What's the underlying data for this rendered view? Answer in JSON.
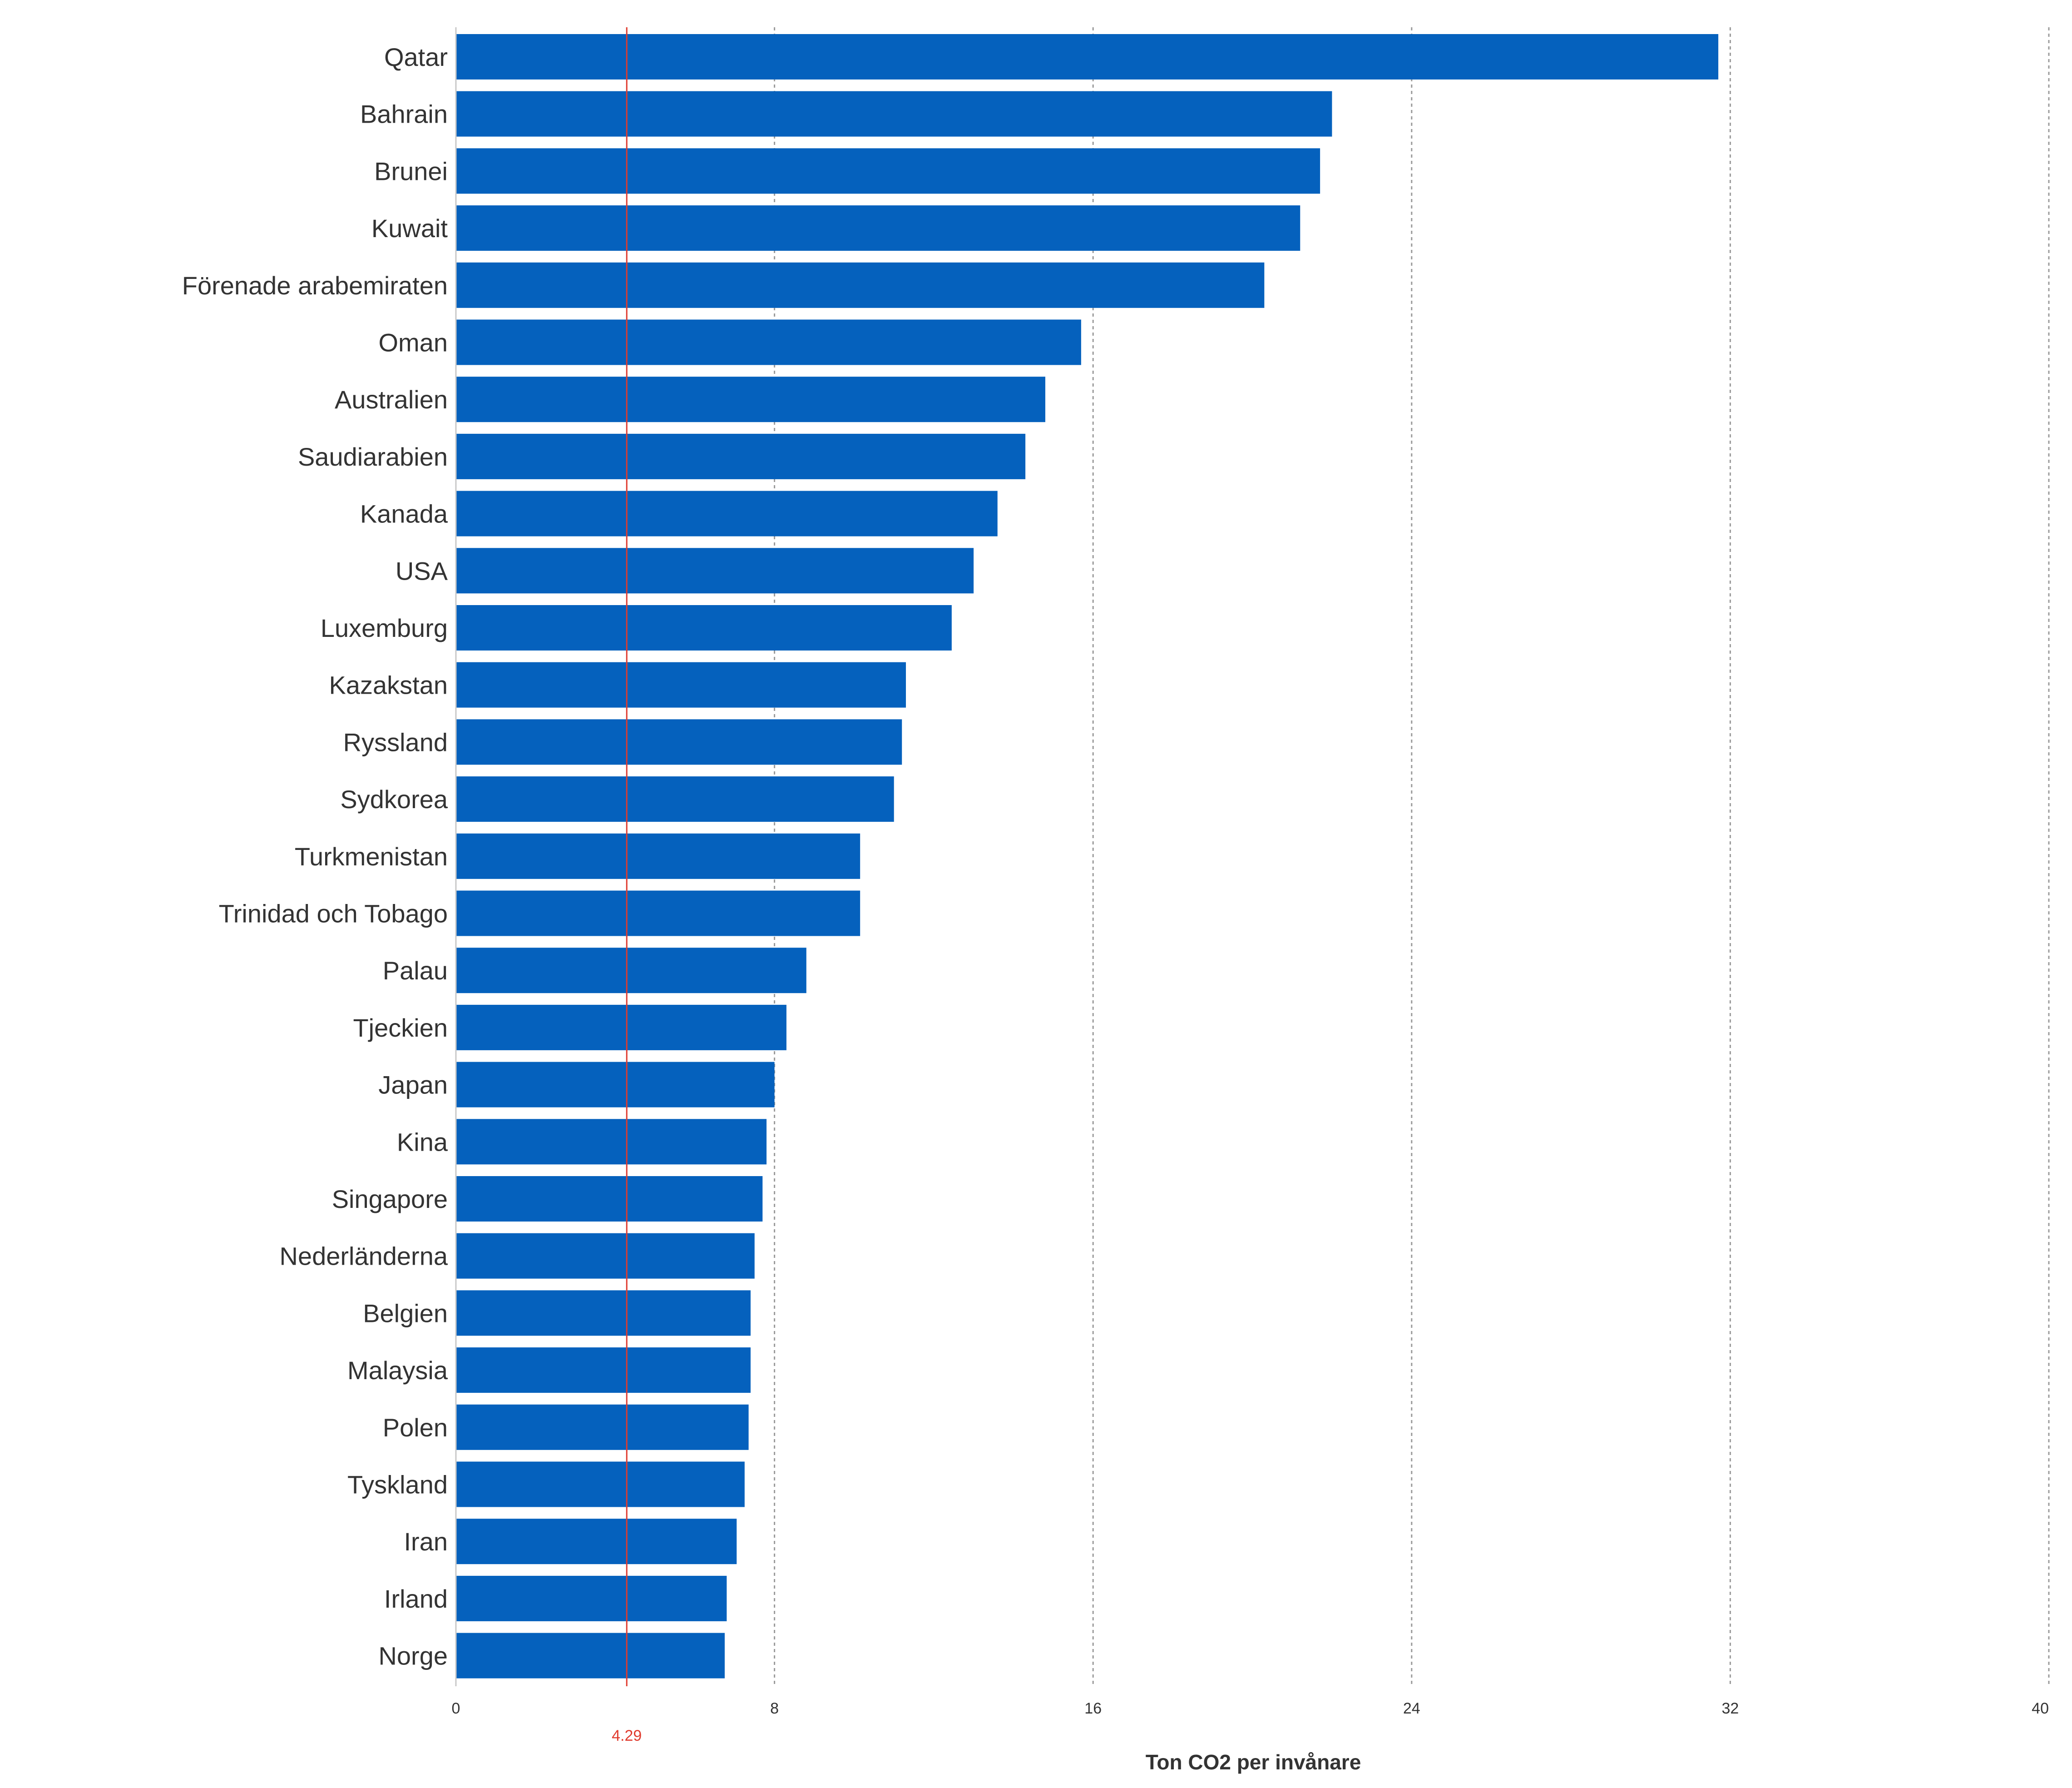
{
  "chart_data": {
    "type": "bar",
    "orientation": "horizontal",
    "categories": [
      "Qatar",
      "Bahrain",
      "Brunei",
      "Kuwait",
      "Förenade arabemiraten",
      "Oman",
      "Australien",
      "Saudiarabien",
      "Kanada",
      "USA",
      "Luxemburg",
      "Kazakstan",
      "Ryssland",
      "Sydkorea",
      "Turkmenistan",
      "Trinidad och Tobago",
      "Palau",
      "Tjeckien",
      "Japan",
      "Kina",
      "Singapore",
      "Nederländerna",
      "Belgien",
      "Malaysia",
      "Polen",
      "Tyskland",
      "Iran",
      "Irland",
      "Norge"
    ],
    "values": [
      31.7,
      22.0,
      21.7,
      21.2,
      20.3,
      15.7,
      14.8,
      14.3,
      13.6,
      13.0,
      12.45,
      11.3,
      11.2,
      11.0,
      10.15,
      10.15,
      8.8,
      8.3,
      8.0,
      7.8,
      7.7,
      7.5,
      7.4,
      7.4,
      7.35,
      7.25,
      7.05,
      6.8,
      6.75
    ],
    "x_axis": {
      "title": "Ton CO2 per invånare",
      "range": [
        0,
        40
      ],
      "ticks": [
        "0",
        "8",
        "16",
        "24",
        "32",
        "40"
      ],
      "tick_values": [
        0,
        8,
        16,
        24,
        32,
        40
      ]
    },
    "reference_line": {
      "value": 4.29,
      "label": "4.29",
      "color": "#e03b2e"
    },
    "bar_color": "#0561bd",
    "grid": {
      "vertical": true,
      "style": "dotted"
    },
    "legend": "none"
  }
}
